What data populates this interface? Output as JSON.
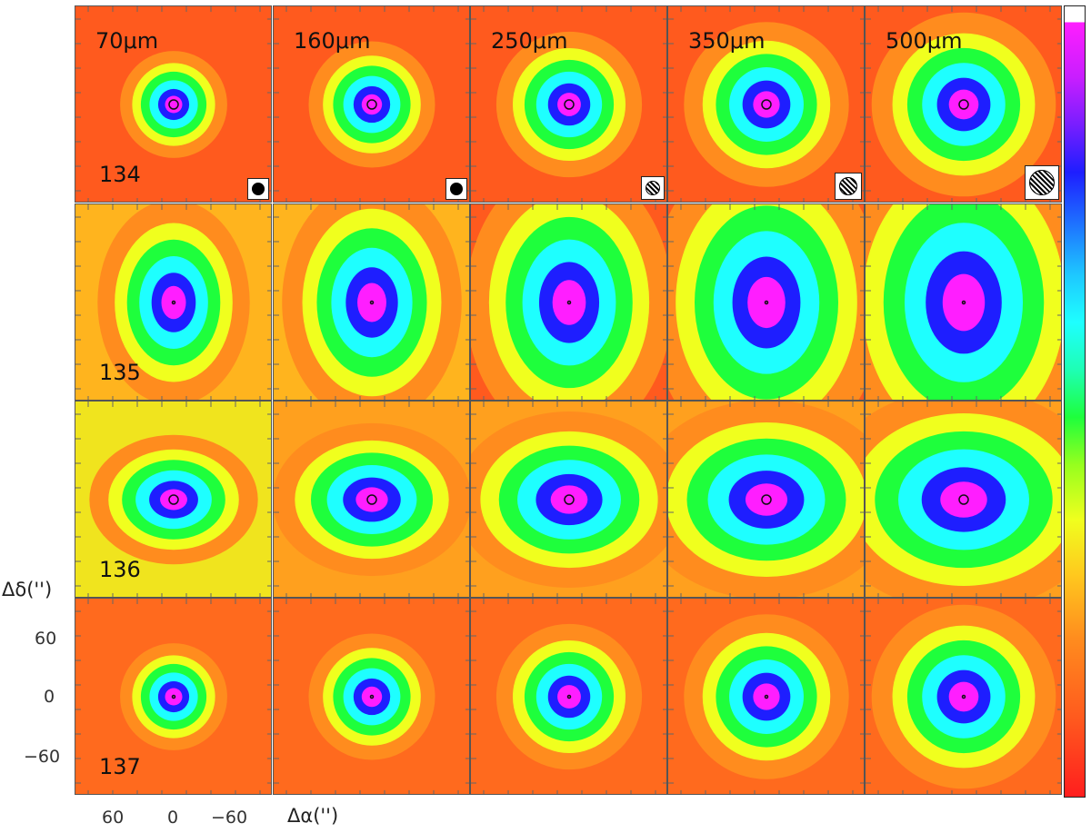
{
  "wavelengths": [
    "70μm",
    "160μm",
    "250μm",
    "350μm",
    "500μm"
  ],
  "sources": [
    "134",
    "135",
    "136",
    "137"
  ],
  "axes": {
    "ylabel": "Δδ('')",
    "xlabel": "Δα('')",
    "yticks": [
      "60",
      "0",
      "−60"
    ],
    "xticks": [
      "60",
      "0",
      "−60"
    ]
  },
  "colorbar": {
    "colors": [
      "#ff1e1e",
      "#ff8c1e",
      "#f0ff1e",
      "#1eff3c",
      "#1effff",
      "#1e1eff",
      "#ff1eff",
      "#ffffff"
    ]
  }
}
